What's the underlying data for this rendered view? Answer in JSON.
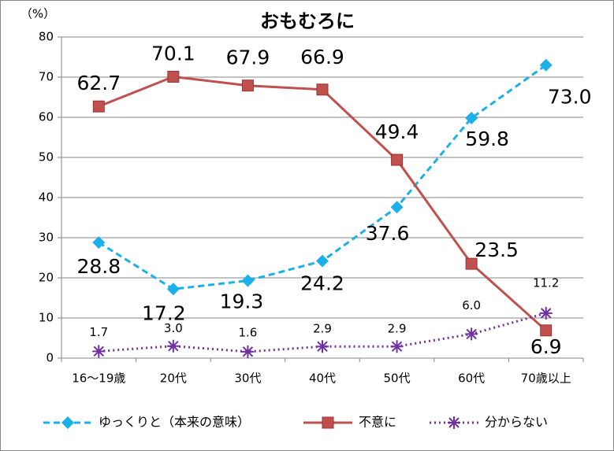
{
  "chart_data": {
    "type": "line",
    "title": "おもむろに",
    "y_label": "（%）",
    "categories": [
      "16～19歳",
      "20代",
      "30代",
      "40代",
      "50代",
      "60代",
      "70歳以上"
    ],
    "series": [
      {
        "name": "ゆっくりと（本来の意味）",
        "color": "#1cb0ea",
        "marker": "diamond",
        "dash": "dashed",
        "values": [
          28.8,
          17.2,
          19.3,
          24.2,
          37.6,
          59.8,
          73.0
        ],
        "value_labels": [
          "28.8",
          "17.2",
          "19.3",
          "24.2",
          "37.6",
          "59.8",
          "73.0"
        ]
      },
      {
        "name": "不意に",
        "color": "#c0504d",
        "marker": "square",
        "dash": "solid",
        "values": [
          62.7,
          70.1,
          67.9,
          66.9,
          49.4,
          23.5,
          6.9
        ],
        "value_labels": [
          "62.7",
          "70.1",
          "67.9",
          "66.9",
          "49.4",
          "23.5",
          "6.9"
        ]
      },
      {
        "name": "分からない",
        "color": "#7030a0",
        "marker": "star",
        "dash": "dotted",
        "values": [
          1.7,
          3.0,
          1.6,
          2.9,
          2.9,
          6.0,
          11.2
        ],
        "value_labels": [
          "1.7",
          "3.0",
          "1.6",
          "2.9",
          "2.9",
          "6.0",
          "11.2"
        ]
      }
    ],
    "ylim": [
      0,
      80
    ],
    "yticks": [
      0,
      10,
      20,
      30,
      40,
      50,
      60,
      70,
      80
    ],
    "grid": true,
    "legend": "bottom"
  }
}
